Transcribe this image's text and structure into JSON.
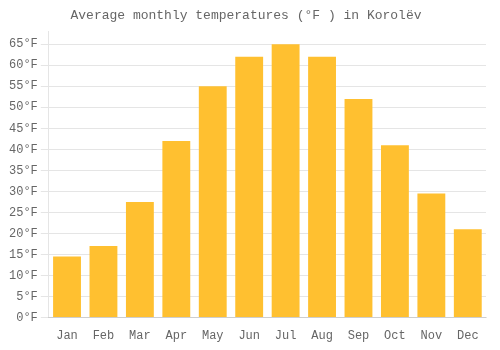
{
  "chart_data": {
    "type": "bar",
    "title": "Average monthly temperatures (°F ) in Korolëv",
    "categories": [
      "Jan",
      "Feb",
      "Mar",
      "Apr",
      "May",
      "Jun",
      "Jul",
      "Aug",
      "Sep",
      "Oct",
      "Nov",
      "Dec"
    ],
    "values": [
      14.5,
      17.0,
      27.5,
      42.0,
      55.0,
      62.0,
      65.0,
      62.0,
      52.0,
      41.0,
      29.5,
      21.0
    ],
    "color": "#FFC030",
    "ylim": [
      0,
      68
    ],
    "yticks": [
      {
        "value": 0,
        "label": "0°F"
      },
      {
        "value": 5,
        "label": "5°F"
      },
      {
        "value": 10,
        "label": "10°F"
      },
      {
        "value": 15,
        "label": "15°F"
      },
      {
        "value": 20,
        "label": "20°F"
      },
      {
        "value": 25,
        "label": "25°F"
      },
      {
        "value": 30,
        "label": "30°F"
      },
      {
        "value": 35,
        "label": "35°F"
      },
      {
        "value": 40,
        "label": "40°F"
      },
      {
        "value": 45,
        "label": "45°F"
      },
      {
        "value": 50,
        "label": "50°F"
      },
      {
        "value": 55,
        "label": "55°F"
      },
      {
        "value": 60,
        "label": "60°F"
      },
      {
        "value": 65,
        "label": "65°F"
      }
    ],
    "grid": true
  }
}
